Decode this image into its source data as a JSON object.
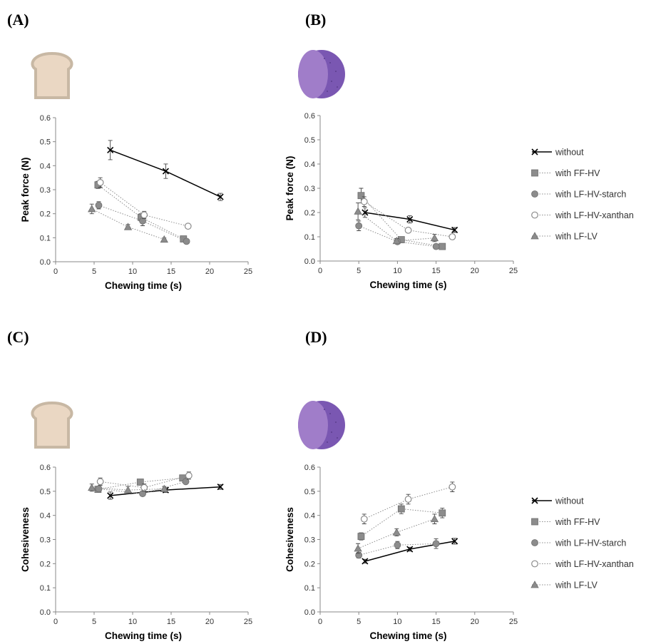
{
  "panels": [
    {
      "id": "A",
      "label": "(A)",
      "icon": "bread-icon"
    },
    {
      "id": "B",
      "label": "(B)",
      "icon": "potato-icon"
    },
    {
      "id": "C",
      "label": "(C)",
      "icon": "bread-icon"
    },
    {
      "id": "D",
      "label": "(D)",
      "icon": "potato-icon"
    }
  ],
  "legend": {
    "items": [
      {
        "key": "without",
        "label": "without"
      },
      {
        "key": "ff_hv",
        "label": "with FF-HV"
      },
      {
        "key": "lf_hv_starch",
        "label": "with LF-HV-starch"
      },
      {
        "key": "lf_hv_xanthan",
        "label": "with LF-HV-xanthan"
      },
      {
        "key": "lf_lv",
        "label": "with LF-LV"
      }
    ]
  },
  "colors": {
    "without": "#000000",
    "marker_fill": "#8c8c8c",
    "marker_stroke": "#6e6e6e",
    "dotted": "#8c8c8c",
    "axis": "#888888",
    "bread_fill": "#ead7c3",
    "bread_crust": "#c8b8a4",
    "potato_fill": "#a07dc9",
    "potato_skin": "#7a57b2"
  },
  "chart_data": [
    {
      "panel": "A",
      "type": "scatter",
      "xlabel": "Chewing time (s)",
      "ylabel": "Peak force (N)",
      "xlim": [
        0,
        25
      ],
      "ylim": [
        0,
        0.6
      ],
      "xticks": [
        "0",
        "5",
        "10",
        "15",
        "20",
        "25"
      ],
      "yticks": [
        "0.0",
        "0.1",
        "0.2",
        "0.3",
        "0.4",
        "0.5",
        "0.6"
      ],
      "series": [
        {
          "key": "without",
          "x": [
            7.1,
            14.3,
            21.4
          ],
          "y": [
            0.465,
            0.377,
            0.27
          ],
          "err": [
            0.04,
            0.03,
            0.015
          ]
        },
        {
          "key": "ff_hv",
          "x": [
            5.5,
            11.1,
            16.6
          ],
          "y": [
            0.32,
            0.185,
            0.095
          ],
          "err": [
            0.015,
            0.015,
            0.006
          ]
        },
        {
          "key": "lf_hv_starch",
          "x": [
            5.6,
            11.3,
            17.0
          ],
          "y": [
            0.235,
            0.17,
            0.085
          ],
          "err": [
            0.015,
            0.02,
            0.006
          ]
        },
        {
          "key": "lf_hv_xanthan",
          "x": [
            5.8,
            11.5,
            17.2
          ],
          "y": [
            0.33,
            0.195,
            0.148
          ],
          "err": [
            0.02,
            0.015,
            0.01
          ]
        },
        {
          "key": "lf_lv",
          "x": [
            4.7,
            9.4,
            14.1
          ],
          "y": [
            0.22,
            0.145,
            0.093
          ],
          "err": [
            0.02,
            0.01,
            0.006
          ]
        }
      ]
    },
    {
      "panel": "B",
      "type": "scatter",
      "xlabel": "Chewing time (s)",
      "ylabel": "Peak force (N)",
      "xlim": [
        0,
        25
      ],
      "ylim": [
        0,
        0.6
      ],
      "xticks": [
        "0",
        "5",
        "10",
        "15",
        "20",
        "25"
      ],
      "yticks": [
        "0.0",
        "0.1",
        "0.2",
        "0.3",
        "0.4",
        "0.5",
        "0.6"
      ],
      "series": [
        {
          "key": "without",
          "x": [
            5.8,
            11.6,
            17.4
          ],
          "y": [
            0.2,
            0.172,
            0.128
          ],
          "err": [
            0.02,
            0.015,
            0.01
          ]
        },
        {
          "key": "ff_hv",
          "x": [
            5.3,
            10.5,
            15.8
          ],
          "y": [
            0.27,
            0.088,
            0.06
          ],
          "err": [
            0.03,
            0.01,
            0.004
          ]
        },
        {
          "key": "lf_hv_starch",
          "x": [
            5.0,
            10.0,
            15.0
          ],
          "y": [
            0.145,
            0.08,
            0.06
          ],
          "err": [
            0.02,
            0.01,
            0.004
          ]
        },
        {
          "key": "lf_hv_xanthan",
          "x": [
            5.7,
            11.4,
            17.1
          ],
          "y": [
            0.245,
            0.127,
            0.1
          ],
          "err": [
            0.02,
            0.01,
            0.01
          ]
        },
        {
          "key": "lf_lv",
          "x": [
            4.9,
            9.9,
            14.8
          ],
          "y": [
            0.205,
            0.083,
            0.095
          ],
          "err": [
            0.035,
            0.01,
            0.015
          ]
        }
      ]
    },
    {
      "panel": "C",
      "type": "scatter",
      "xlabel": "Chewing time (s)",
      "ylabel": "Cohesiveness",
      "xlim": [
        0,
        25
      ],
      "ylim": [
        0,
        0.6
      ],
      "xticks": [
        "0",
        "5",
        "10",
        "15",
        "20",
        "25"
      ],
      "yticks": [
        "0.0",
        "0.1",
        "0.2",
        "0.3",
        "0.4",
        "0.5",
        "0.6"
      ],
      "series": [
        {
          "key": "without",
          "x": [
            7.1,
            14.3,
            21.4
          ],
          "y": [
            0.482,
            0.505,
            0.518
          ],
          "err": [
            0.015,
            0.01,
            0.01
          ]
        },
        {
          "key": "ff_hv",
          "x": [
            5.5,
            11.0,
            16.5
          ],
          "y": [
            0.508,
            0.538,
            0.555
          ],
          "err": [
            0.01,
            0.01,
            0.01
          ]
        },
        {
          "key": "lf_hv_starch",
          "x": [
            5.6,
            11.3,
            16.9
          ],
          "y": [
            0.51,
            0.49,
            0.54
          ],
          "err": [
            0.01,
            0.01,
            0.01
          ]
        },
        {
          "key": "lf_hv_xanthan",
          "x": [
            5.8,
            11.5,
            17.3
          ],
          "y": [
            0.54,
            0.515,
            0.565
          ],
          "err": [
            0.015,
            0.015,
            0.015
          ]
        },
        {
          "key": "lf_lv",
          "x": [
            4.7,
            9.4,
            14.1
          ],
          "y": [
            0.515,
            0.505,
            0.51
          ],
          "err": [
            0.015,
            0.015,
            0.01
          ]
        }
      ]
    },
    {
      "panel": "D",
      "type": "scatter",
      "xlabel": "Chewing time (s)",
      "ylabel": "Cohesiveness",
      "xlim": [
        0,
        25
      ],
      "ylim": [
        0,
        0.6
      ],
      "xticks": [
        "0",
        "5",
        "10",
        "15",
        "20",
        "25"
      ],
      "yticks": [
        "0.0",
        "0.1",
        "0.2",
        "0.3",
        "0.4",
        "0.5",
        "0.6"
      ],
      "series": [
        {
          "key": "without",
          "x": [
            5.8,
            11.6,
            17.4
          ],
          "y": [
            0.21,
            0.26,
            0.293
          ],
          "err": [
            0.008,
            0.008,
            0.012
          ]
        },
        {
          "key": "ff_hv",
          "x": [
            5.3,
            10.5,
            15.8
          ],
          "y": [
            0.313,
            0.427,
            0.41
          ],
          "err": [
            0.015,
            0.02,
            0.02
          ]
        },
        {
          "key": "lf_hv_starch",
          "x": [
            5.0,
            10.0,
            15.0
          ],
          "y": [
            0.235,
            0.277,
            0.283
          ],
          "err": [
            0.012,
            0.015,
            0.02
          ]
        },
        {
          "key": "lf_hv_xanthan",
          "x": [
            5.7,
            11.4,
            17.1
          ],
          "y": [
            0.385,
            0.467,
            0.518
          ],
          "err": [
            0.02,
            0.02,
            0.02
          ]
        },
        {
          "key": "lf_lv",
          "x": [
            4.9,
            9.9,
            14.8
          ],
          "y": [
            0.263,
            0.33,
            0.385
          ],
          "err": [
            0.02,
            0.015,
            0.02
          ]
        }
      ]
    }
  ]
}
